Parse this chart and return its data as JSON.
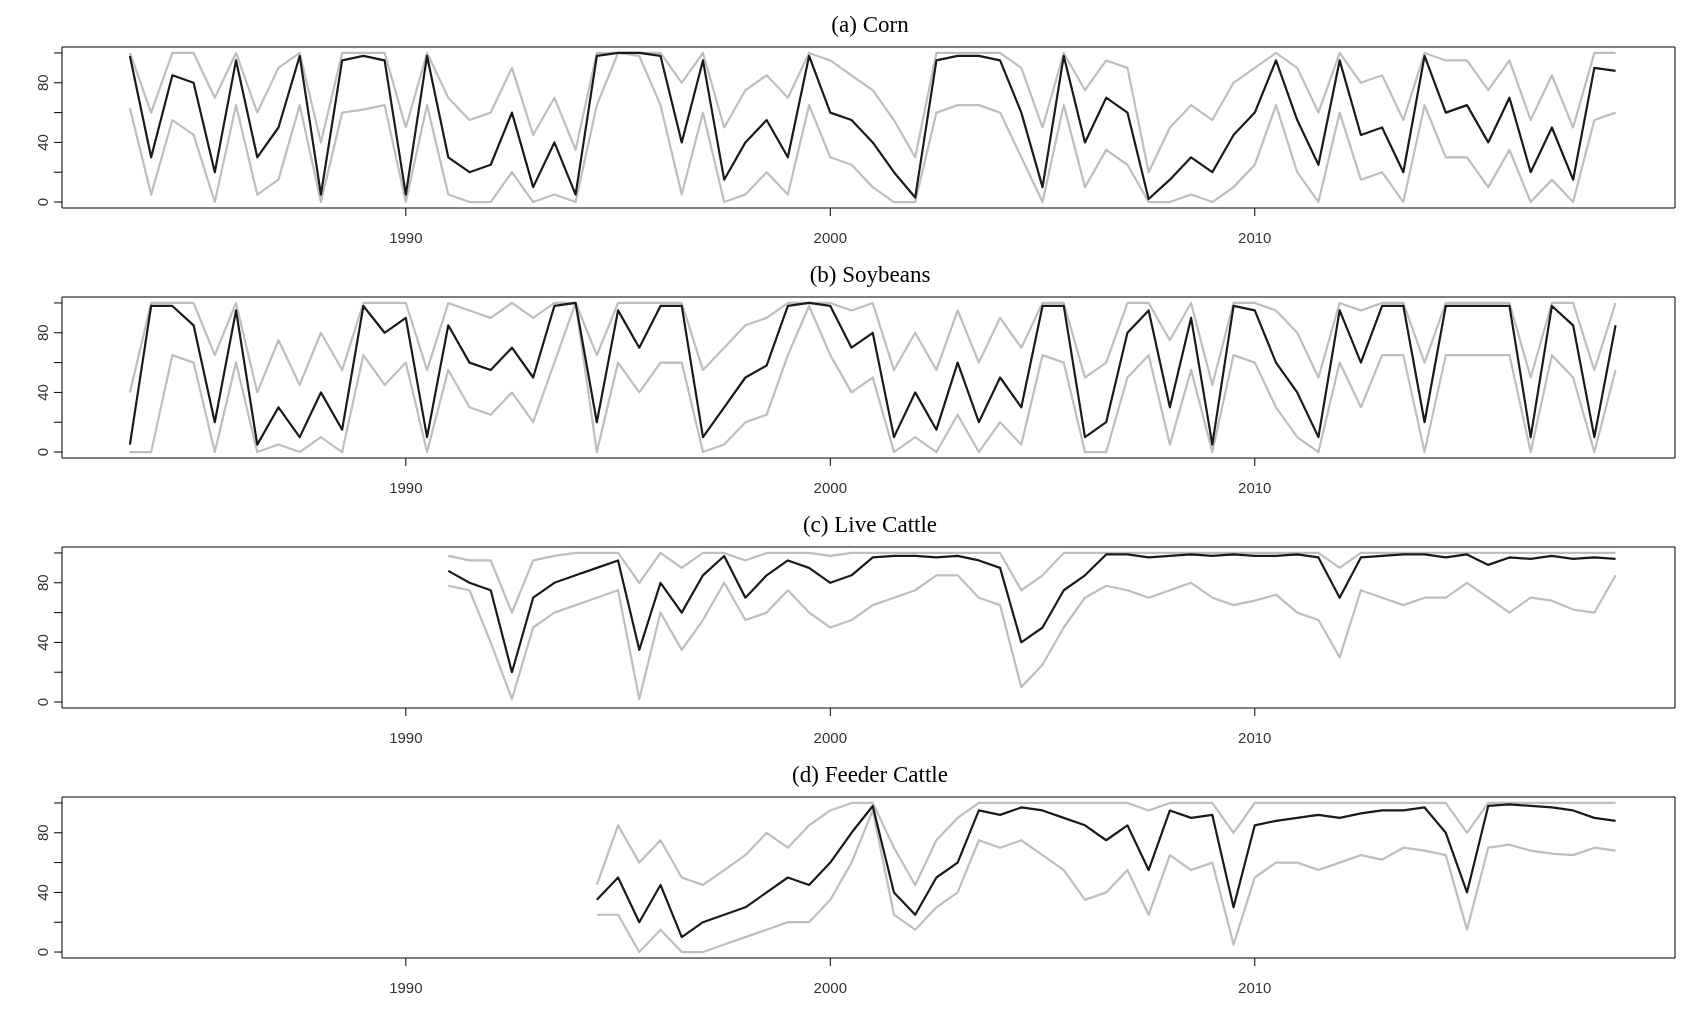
{
  "chart_data": [
    {
      "type": "line",
      "title": "(a) Corn",
      "xlim": [
        1981.9,
        2019.9
      ],
      "xticks": [
        1990,
        2000,
        2010
      ],
      "ylim": [
        -4,
        104
      ],
      "yticks": [
        0,
        {
          "value": 20,
          "label": null
        },
        40,
        {
          "value": 60,
          "label": null
        },
        80,
        {
          "value": 100,
          "label": null
        }
      ],
      "grid": false,
      "legend": false,
      "x": [
        1983.5,
        1984,
        1984.5,
        1985,
        1985.5,
        1986,
        1986.5,
        1987,
        1987.5,
        1988,
        1988.5,
        1989,
        1989.5,
        1990,
        1990.5,
        1991,
        1991.5,
        1992,
        1992.5,
        1993,
        1993.5,
        1994,
        1994.5,
        1995,
        1995.5,
        1996,
        1996.5,
        1997,
        1997.5,
        1998,
        1998.5,
        1999,
        1999.5,
        2000,
        2000.5,
        2001,
        2001.5,
        2002,
        2002.5,
        2003,
        2003.5,
        2004,
        2004.5,
        2005,
        2005.5,
        2006,
        2006.5,
        2007,
        2007.5,
        2008,
        2008.5,
        2009,
        2009.5,
        2010,
        2010.5,
        2011,
        2011.5,
        2012,
        2012.5,
        2013,
        2013.5,
        2014,
        2014.5,
        2015,
        2015.5,
        2016,
        2016.5,
        2017,
        2017.5,
        2018,
        2018.5
      ],
      "series": [
        {
          "color": "#bebebe",
          "values": [
            100,
            60,
            100,
            100,
            70,
            100,
            60,
            90,
            100,
            40,
            100,
            100,
            100,
            50,
            100,
            70,
            55,
            60,
            90,
            45,
            70,
            35,
            100,
            100,
            100,
            100,
            80,
            100,
            50,
            75,
            85,
            70,
            100,
            95,
            85,
            75,
            55,
            30,
            100,
            100,
            100,
            100,
            90,
            50,
            100,
            75,
            95,
            90,
            20,
            50,
            65,
            55,
            80,
            90,
            100,
            90,
            60,
            100,
            80,
            85,
            55,
            100,
            95,
            95,
            75,
            95,
            55,
            85,
            50,
            100,
            100
          ]
        },
        {
          "color": "#bebebe",
          "values": [
            63,
            5,
            55,
            45,
            0,
            65,
            5,
            15,
            65,
            0,
            60,
            62,
            65,
            0,
            65,
            5,
            0,
            0,
            20,
            0,
            5,
            0,
            65,
            100,
            98,
            65,
            5,
            60,
            0,
            5,
            20,
            5,
            65,
            30,
            25,
            10,
            0,
            0,
            60,
            65,
            65,
            60,
            30,
            0,
            65,
            10,
            35,
            25,
            0,
            0,
            5,
            0,
            10,
            25,
            65,
            20,
            0,
            60,
            15,
            20,
            0,
            65,
            30,
            30,
            10,
            35,
            0,
            15,
            0,
            55,
            60
          ]
        },
        {
          "color": "#1a1a1a",
          "values": [
            98,
            30,
            85,
            80,
            20,
            95,
            30,
            50,
            98,
            5,
            95,
            98,
            95,
            5,
            98,
            30,
            20,
            25,
            60,
            10,
            40,
            5,
            98,
            100,
            100,
            98,
            40,
            95,
            15,
            40,
            55,
            30,
            98,
            60,
            55,
            40,
            20,
            3,
            95,
            98,
            98,
            95,
            60,
            10,
            98,
            40,
            70,
            60,
            2,
            15,
            30,
            20,
            45,
            60,
            95,
            55,
            25,
            95,
            45,
            50,
            20,
            98,
            60,
            65,
            40,
            70,
            20,
            50,
            15,
            90,
            88
          ]
        }
      ]
    },
    {
      "type": "line",
      "title": "(b) Soybeans",
      "xlim": [
        1981.9,
        2019.9
      ],
      "xticks": [
        1990,
        2000,
        2010
      ],
      "ylim": [
        -4,
        104
      ],
      "yticks": [
        0,
        {
          "value": 20,
          "label": null
        },
        40,
        {
          "value": 60,
          "label": null
        },
        80,
        {
          "value": 100,
          "label": null
        }
      ],
      "grid": false,
      "legend": false,
      "x": [
        1983.5,
        1984,
        1984.5,
        1985,
        1985.5,
        1986,
        1986.5,
        1987,
        1987.5,
        1988,
        1988.5,
        1989,
        1989.5,
        1990,
        1990.5,
        1991,
        1991.5,
        1992,
        1992.5,
        1993,
        1993.5,
        1994,
        1994.5,
        1995,
        1995.5,
        1996,
        1996.5,
        1997,
        1997.5,
        1998,
        1998.5,
        1999,
        1999.5,
        2000,
        2000.5,
        2001,
        2001.5,
        2002,
        2002.5,
        2003,
        2003.5,
        2004,
        2004.5,
        2005,
        2005.5,
        2006,
        2006.5,
        2007,
        2007.5,
        2008,
        2008.5,
        2009,
        2009.5,
        2010,
        2010.5,
        2011,
        2011.5,
        2012,
        2012.5,
        2013,
        2013.5,
        2014,
        2014.5,
        2015,
        2015.5,
        2016,
        2016.5,
        2017,
        2017.5,
        2018,
        2018.5
      ],
      "series": [
        {
          "color": "#bebebe",
          "values": [
            40,
            100,
            100,
            100,
            65,
            100,
            40,
            75,
            45,
            80,
            55,
            100,
            100,
            100,
            55,
            100,
            95,
            90,
            100,
            90,
            100,
            100,
            65,
            100,
            100,
            100,
            100,
            55,
            70,
            85,
            90,
            100,
            100,
            100,
            95,
            100,
            55,
            80,
            55,
            95,
            60,
            90,
            70,
            100,
            100,
            50,
            60,
            100,
            100,
            75,
            100,
            45,
            100,
            100,
            95,
            80,
            50,
            100,
            95,
            100,
            100,
            60,
            100,
            100,
            100,
            100,
            50,
            100,
            100,
            55,
            100
          ]
        },
        {
          "color": "#bebebe",
          "values": [
            0,
            0,
            65,
            60,
            0,
            60,
            0,
            5,
            0,
            10,
            0,
            65,
            45,
            60,
            0,
            55,
            30,
            25,
            40,
            20,
            60,
            100,
            0,
            60,
            40,
            60,
            60,
            0,
            5,
            20,
            25,
            65,
            98,
            65,
            40,
            50,
            0,
            10,
            0,
            25,
            0,
            20,
            5,
            65,
            60,
            0,
            0,
            50,
            65,
            5,
            55,
            0,
            65,
            60,
            30,
            10,
            0,
            60,
            30,
            65,
            65,
            0,
            65,
            65,
            65,
            65,
            0,
            65,
            50,
            0,
            55
          ]
        },
        {
          "color": "#1a1a1a",
          "values": [
            5,
            98,
            98,
            85,
            20,
            95,
            5,
            30,
            10,
            40,
            15,
            98,
            80,
            90,
            10,
            85,
            60,
            55,
            70,
            50,
            98,
            100,
            20,
            95,
            70,
            98,
            98,
            10,
            30,
            50,
            58,
            98,
            100,
            98,
            70,
            80,
            10,
            40,
            15,
            60,
            20,
            50,
            30,
            98,
            98,
            10,
            20,
            80,
            95,
            30,
            90,
            5,
            98,
            95,
            60,
            40,
            10,
            95,
            60,
            98,
            98,
            20,
            98,
            98,
            98,
            98,
            10,
            98,
            85,
            10,
            85
          ]
        }
      ]
    },
    {
      "type": "line",
      "title": "(c) Live Cattle",
      "xlim": [
        1981.9,
        2019.9
      ],
      "xticks": [
        1990,
        2000,
        2010
      ],
      "ylim": [
        -4,
        104
      ],
      "yticks": [
        0,
        {
          "value": 20,
          "label": null
        },
        40,
        {
          "value": 60,
          "label": null
        },
        80,
        {
          "value": 100,
          "label": null
        }
      ],
      "grid": false,
      "legend": false,
      "x": [
        1991,
        1991.5,
        1992,
        1992.5,
        1993,
        1993.5,
        1994,
        1994.5,
        1995,
        1995.5,
        1996,
        1996.5,
        1997,
        1997.5,
        1998,
        1998.5,
        1999,
        1999.5,
        2000,
        2000.5,
        2001,
        2001.5,
        2002,
        2002.5,
        2003,
        2003.5,
        2004,
        2004.5,
        2005,
        2005.5,
        2006,
        2006.5,
        2007,
        2007.5,
        2008,
        2008.5,
        2009,
        2009.5,
        2010,
        2010.5,
        2011,
        2011.5,
        2012,
        2012.5,
        2013,
        2013.5,
        2014,
        2014.5,
        2015,
        2015.5,
        2016,
        2016.5,
        2017,
        2017.5,
        2018,
        2018.5
      ],
      "series": [
        {
          "color": "#bebebe",
          "values": [
            98,
            95,
            95,
            60,
            95,
            98,
            100,
            100,
            100,
            80,
            100,
            90,
            100,
            100,
            95,
            100,
            100,
            100,
            98,
            100,
            100,
            100,
            100,
            100,
            100,
            100,
            100,
            75,
            85,
            100,
            100,
            100,
            100,
            100,
            100,
            100,
            100,
            100,
            100,
            100,
            100,
            100,
            90,
            100,
            100,
            100,
            100,
            100,
            100,
            100,
            100,
            100,
            100,
            100,
            100,
            100
          ]
        },
        {
          "color": "#bebebe",
          "values": [
            78,
            75,
            40,
            2,
            50,
            60,
            65,
            70,
            75,
            2,
            60,
            35,
            55,
            80,
            55,
            60,
            75,
            60,
            50,
            55,
            65,
            70,
            75,
            85,
            85,
            70,
            65,
            10,
            25,
            50,
            70,
            78,
            75,
            70,
            75,
            80,
            70,
            65,
            68,
            72,
            60,
            55,
            30,
            75,
            70,
            65,
            70,
            70,
            80,
            70,
            60,
            70,
            68,
            62,
            60,
            85
          ]
        },
        {
          "color": "#1a1a1a",
          "values": [
            88,
            80,
            75,
            20,
            70,
            80,
            85,
            90,
            95,
            35,
            80,
            60,
            85,
            98,
            70,
            85,
            95,
            90,
            80,
            85,
            97,
            98,
            98,
            97,
            98,
            95,
            90,
            40,
            50,
            75,
            85,
            99,
            99,
            97,
            98,
            99,
            98,
            99,
            98,
            98,
            99,
            97,
            70,
            97,
            98,
            99,
            99,
            97,
            99,
            92,
            97,
            96,
            98,
            96,
            97,
            96
          ]
        }
      ]
    },
    {
      "type": "line",
      "title": "(d) Feeder Cattle",
      "xlim": [
        1981.9,
        2019.9
      ],
      "xticks": [
        1990,
        2000,
        2010
      ],
      "ylim": [
        -4,
        104
      ],
      "yticks": [
        0,
        {
          "value": 20,
          "label": null
        },
        40,
        {
          "value": 60,
          "label": null
        },
        80,
        {
          "value": 100,
          "label": null
        }
      ],
      "grid": false,
      "legend": false,
      "x": [
        1994.5,
        1995,
        1995.5,
        1996,
        1996.5,
        1997,
        1997.5,
        1998,
        1998.5,
        1999,
        1999.5,
        2000,
        2000.5,
        2001,
        2001.5,
        2002,
        2002.5,
        2003,
        2003.5,
        2004,
        2004.5,
        2005,
        2005.5,
        2006,
        2006.5,
        2007,
        2007.5,
        2008,
        2008.5,
        2009,
        2009.5,
        2010,
        2010.5,
        2011,
        2011.5,
        2012,
        2012.5,
        2013,
        2013.5,
        2014,
        2014.5,
        2015,
        2015.5,
        2016,
        2016.5,
        2017,
        2017.5,
        2018,
        2018.5
      ],
      "series": [
        {
          "color": "#bebebe",
          "values": [
            45,
            85,
            60,
            75,
            50,
            45,
            55,
            65,
            80,
            70,
            85,
            95,
            100,
            100,
            70,
            45,
            75,
            90,
            100,
            100,
            100,
            100,
            100,
            100,
            100,
            100,
            95,
            100,
            100,
            100,
            80,
            100,
            100,
            100,
            100,
            100,
            100,
            100,
            100,
            100,
            100,
            80,
            100,
            100,
            100,
            100,
            100,
            100,
            100
          ]
        },
        {
          "color": "#bebebe",
          "values": [
            25,
            25,
            0,
            15,
            0,
            0,
            5,
            10,
            15,
            20,
            20,
            35,
            60,
            95,
            25,
            15,
            30,
            40,
            75,
            70,
            75,
            65,
            55,
            35,
            40,
            55,
            25,
            65,
            55,
            60,
            5,
            50,
            60,
            60,
            55,
            60,
            65,
            62,
            70,
            68,
            65,
            15,
            70,
            72,
            68,
            66,
            65,
            70,
            68
          ]
        },
        {
          "color": "#1a1a1a",
          "values": [
            35,
            50,
            20,
            45,
            10,
            20,
            25,
            30,
            40,
            50,
            45,
            60,
            80,
            98,
            40,
            25,
            50,
            60,
            95,
            92,
            97,
            95,
            90,
            85,
            75,
            85,
            55,
            95,
            90,
            92,
            30,
            85,
            88,
            90,
            92,
            90,
            93,
            95,
            95,
            97,
            80,
            40,
            98,
            99,
            98,
            97,
            95,
            90,
            88
          ]
        }
      ]
    }
  ]
}
